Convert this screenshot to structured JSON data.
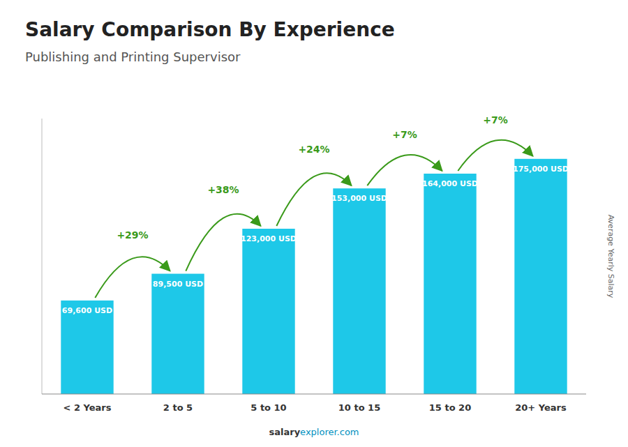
{
  "chart_data": {
    "type": "bar",
    "title": "Salary Comparison By Experience",
    "subtitle": "Publishing and Printing Supervisor",
    "y_label": "Average Yearly Salary",
    "categories": [
      "< 2 Years",
      "2 to 5",
      "5 to 10",
      "10 to 15",
      "15 to 20",
      "20+ Years"
    ],
    "values": [
      69600,
      89500,
      123000,
      153000,
      164000,
      175000
    ],
    "value_labels": [
      "69,600 USD",
      "89,500 USD",
      "123,000 USD",
      "153,000 USD",
      "164,000 USD",
      "175,000 USD"
    ],
    "annotations": [
      "+29%",
      "+38%",
      "+24%",
      "+7%",
      "+7%"
    ],
    "watermark": [
      "salary",
      "explorer.com"
    ],
    "color": "#1ec8e8",
    "ylim": [
      0,
      205000
    ],
    "tick_labels": "x",
    "data_labels": true
  }
}
